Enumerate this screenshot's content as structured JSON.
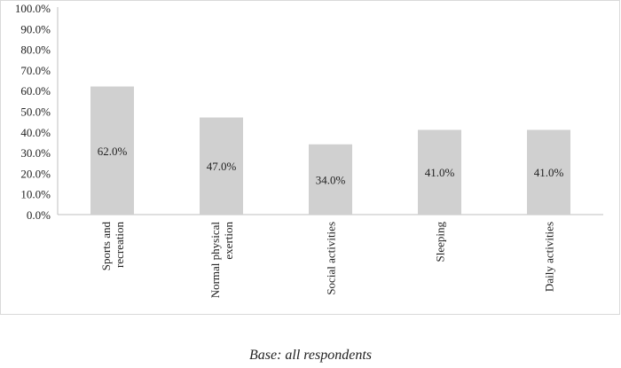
{
  "chart_data": {
    "type": "bar",
    "categories": [
      "Sports and recreation",
      "Normal physical exertion",
      "Social activities",
      "Sleeping",
      "Daily activities"
    ],
    "category_lines": [
      [
        "Sports and",
        "recreation"
      ],
      [
        "Normal physical",
        "exertion"
      ],
      [
        "Social activities"
      ],
      [
        "Sleeping"
      ],
      [
        "Daily activities"
      ]
    ],
    "values": [
      62.0,
      47.0,
      34.0,
      41.0,
      41.0
    ],
    "data_labels": [
      "62.0%",
      "47.0%",
      "34.0%",
      "41.0%",
      "41.0%"
    ],
    "yticks": [
      "0.0%",
      "10.0%",
      "20.0%",
      "30.0%",
      "40.0%",
      "50.0%",
      "60.0%",
      "70.0%",
      "80.0%",
      "90.0%",
      "100.0%"
    ],
    "ylim": [
      0,
      100
    ],
    "grid": false,
    "bar_color": "#d0d0d0",
    "note": "Base: all respondents"
  }
}
